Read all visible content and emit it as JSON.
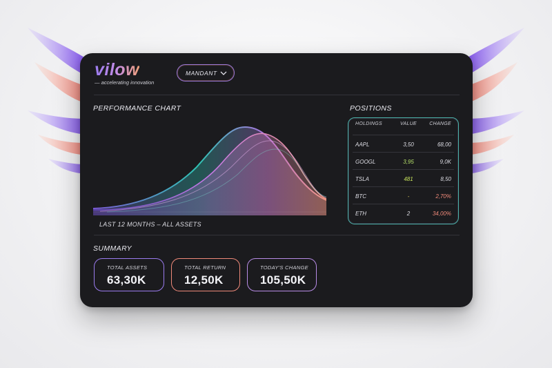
{
  "brand": {
    "name": "vilow",
    "tagline": "— accelerating innovation"
  },
  "account_selector": {
    "selected": "MANDANT"
  },
  "performance": {
    "title": "PERFORMANCE CHART",
    "caption": "LAST 12 MONTHS – ALL ASSETS"
  },
  "positions": {
    "title": "POSITIONS",
    "headers": [
      "HOLDINGS",
      "VALUE",
      "CHANGE"
    ],
    "rows": [
      {
        "holding": "AAPL",
        "value": "3,50",
        "change": "68,00",
        "value_color": "#dedee5",
        "change_color": "#dedee5"
      },
      {
        "holding": "GOOGL",
        "value": "3,95",
        "change": "9,0K",
        "value_color": "#b6e06a",
        "change_color": "#dedee5"
      },
      {
        "holding": "TSLA",
        "value": "481",
        "change": "8,50",
        "value_color": "#c7e35c",
        "change_color": "#dedee5"
      },
      {
        "holding": "BTC",
        "value": "-",
        "change": "2,70%",
        "value_color": "#d8c85a",
        "change_color": "#f08a7a"
      },
      {
        "holding": "ETH",
        "value": "2",
        "change": "34,00%",
        "value_color": "#dedee5",
        "change_color": "#f08a7a"
      }
    ]
  },
  "summary": {
    "title": "SUMMARY",
    "cards": [
      {
        "label": "TOTAL ASSETS",
        "value": "63,30K",
        "border": "#9b7cf0"
      },
      {
        "label": "TOTAL RETURN",
        "value": "12,50K",
        "border": "#f08a7a"
      },
      {
        "label": "TODAY'S CHANGE",
        "value": "105,50K",
        "border": "#b98de8"
      }
    ]
  },
  "colors": {
    "card_bg": "#1b1b1e",
    "accent_teal": "#3fc4b4",
    "accent_purple": "#9b7cf0",
    "accent_coral": "#f08a7a"
  }
}
